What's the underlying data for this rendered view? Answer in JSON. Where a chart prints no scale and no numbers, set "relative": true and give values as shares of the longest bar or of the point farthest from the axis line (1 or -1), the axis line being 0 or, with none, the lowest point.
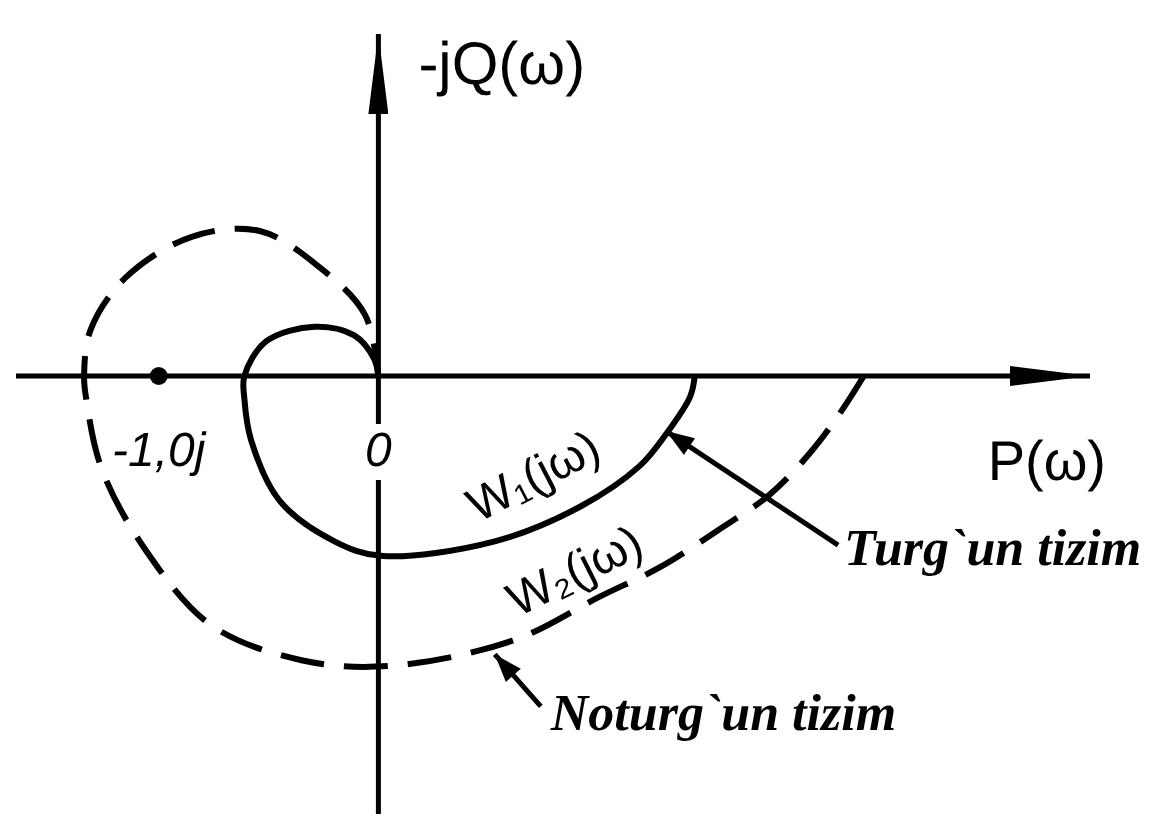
{
  "chart_data": {
    "type": "line",
    "xlabel": "P(ω)",
    "ylabel": "-jQ(ω)",
    "relative": true,
    "xlim": [
      -1.65,
      3.24
    ],
    "xticks": [
      {
        "value": -1,
        "label": "-1,0j"
      },
      {
        "value": 0,
        "label": "0"
      }
    ],
    "series": [
      {
        "name": "W₁(jω)",
        "color": "#000000",
        "line_style": "solid",
        "x": [
          1.44,
          1.42,
          1.31,
          1.19,
          0.92,
          0.53,
          0.01,
          -0.2,
          -0.45,
          -0.58,
          -0.61,
          -0.61,
          -0.51,
          -0.29,
          -0.11,
          -0.02,
          0
        ],
        "values": [
          0,
          -0.07,
          -0.2,
          -0.31,
          -0.45,
          -0.57,
          -0.62,
          -0.57,
          -0.43,
          -0.22,
          -0.08,
          0,
          0.12,
          0.17,
          0.14,
          0.06,
          0
        ]
      },
      {
        "name": "W₂(jω)",
        "color": "#000000",
        "line_style": "dashed",
        "x": [
          2.21,
          2.1,
          1.96,
          1.78,
          1.55,
          1.28,
          1.01,
          0.62,
          0.05,
          -0.35,
          -0.76,
          -1.06,
          -1.26,
          -1.33,
          -1.34,
          -1.31,
          -1.15,
          -0.85,
          -0.54,
          -0.26,
          -0.06,
          0
        ],
        "values": [
          0,
          -0.13,
          -0.27,
          -0.41,
          -0.53,
          -0.66,
          -0.76,
          -0.91,
          -1,
          -0.98,
          -0.86,
          -0.6,
          -0.32,
          -0.08,
          0,
          0.16,
          0.34,
          0.48,
          0.5,
          0.37,
          0.21,
          0
        ]
      },
      {
        "type": "scatter",
        "color": "#000000",
        "marker": "circle",
        "x": [
          -1
        ],
        "values": [
          0
        ]
      }
    ],
    "annotations": [
      {
        "text": "Turg`un tizim",
        "x": 1.31,
        "y": -0.19
      },
      {
        "text": "Noturg`un tizim",
        "x": 0.53,
        "y": -0.96
      }
    ]
  }
}
